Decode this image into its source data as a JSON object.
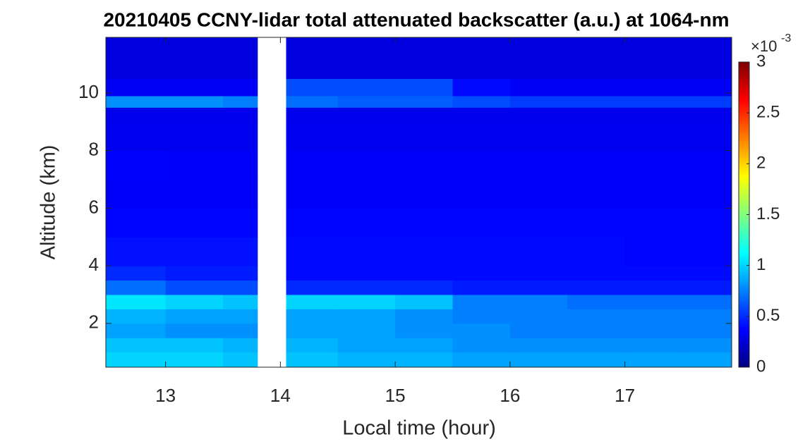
{
  "chart_data": {
    "type": "heatmap",
    "title": "20210405 CCNY-lidar total attenuated backscatter (a.u.) at 1064-nm",
    "xlabel": "Local time (hour)",
    "ylabel": "Altitude (km)",
    "colormap": "jet",
    "x_bins": [
      12.48,
      13,
      13.5,
      13.8,
      14.05,
      14.5,
      15,
      15.5,
      16,
      16.5,
      17,
      17.5,
      17.93
    ],
    "y_bins": [
      0.48,
      1,
      1.5,
      2,
      2.5,
      3,
      3.5,
      4,
      5,
      6,
      7,
      8,
      9,
      9.5,
      9.9,
      10.5,
      11.93
    ],
    "values": [
      [
        1.0,
        1.0,
        0.95,
        null,
        0.95,
        0.9,
        0.9,
        0.85,
        0.85,
        0.85,
        0.85,
        0.85
      ],
      [
        0.95,
        0.95,
        0.9,
        null,
        0.9,
        0.85,
        0.85,
        0.8,
        0.8,
        0.8,
        0.8,
        0.8
      ],
      [
        0.85,
        0.8,
        0.8,
        null,
        0.85,
        0.85,
        0.8,
        0.8,
        0.75,
        0.75,
        0.75,
        0.75
      ],
      [
        0.9,
        0.85,
        0.85,
        null,
        0.85,
        0.85,
        0.8,
        0.75,
        0.75,
        0.75,
        0.75,
        0.75
      ],
      [
        1.05,
        1.0,
        0.95,
        null,
        1.0,
        1.0,
        0.95,
        0.75,
        0.75,
        0.7,
        0.7,
        0.7
      ],
      [
        0.7,
        0.6,
        0.6,
        null,
        0.5,
        0.5,
        0.5,
        0.45,
        0.45,
        0.45,
        0.45,
        0.45
      ],
      [
        0.5,
        0.45,
        0.45,
        null,
        0.4,
        0.4,
        0.4,
        0.4,
        0.4,
        0.4,
        0.4,
        0.4
      ],
      [
        0.42,
        0.42,
        0.42,
        null,
        0.4,
        0.4,
        0.4,
        0.4,
        0.4,
        0.4,
        0.38,
        0.38
      ],
      [
        0.38,
        0.38,
        0.38,
        null,
        0.38,
        0.38,
        0.38,
        0.38,
        0.38,
        0.38,
        0.38,
        0.38
      ],
      [
        0.36,
        0.36,
        0.36,
        null,
        0.36,
        0.36,
        0.36,
        0.36,
        0.36,
        0.36,
        0.36,
        0.36
      ],
      [
        0.37,
        0.36,
        0.36,
        null,
        0.36,
        0.36,
        0.36,
        0.36,
        0.36,
        0.36,
        0.36,
        0.36
      ],
      [
        0.33,
        0.33,
        0.33,
        null,
        0.33,
        0.33,
        0.33,
        0.33,
        0.33,
        0.33,
        0.33,
        0.33
      ],
      [
        0.32,
        0.32,
        0.32,
        null,
        0.32,
        0.32,
        0.32,
        0.32,
        0.32,
        0.32,
        0.32,
        0.32
      ],
      [
        0.8,
        0.8,
        0.75,
        null,
        0.7,
        0.65,
        0.65,
        0.6,
        0.55,
        0.55,
        0.55,
        0.55
      ],
      [
        0.35,
        0.35,
        0.35,
        null,
        0.6,
        0.6,
        0.6,
        0.4,
        0.35,
        0.35,
        0.35,
        0.35
      ],
      [
        0.28,
        0.28,
        0.28,
        null,
        0.28,
        0.28,
        0.28,
        0.28,
        0.28,
        0.28,
        0.28,
        0.28
      ]
    ],
    "xlim": [
      12.48,
      17.93
    ],
    "ylim": [
      0.48,
      11.93
    ],
    "xticks": [
      13,
      14,
      15,
      16,
      17
    ],
    "yticks": [
      2,
      4,
      6,
      8,
      10
    ],
    "clim": [
      0,
      3
    ],
    "cticks": [
      0,
      0.5,
      1,
      1.5,
      2,
      2.5,
      3
    ],
    "colorbar_multiplier": "×10",
    "colorbar_exponent": "-3"
  }
}
